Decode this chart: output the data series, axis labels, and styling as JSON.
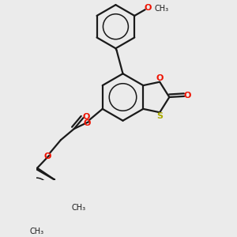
{
  "bg_color": "#ebebeb",
  "bond_color": "#1a1a1a",
  "oxygen_color": "#ee1100",
  "sulfur_color": "#aaaa00",
  "lw": 1.6,
  "fig_size": [
    3.0,
    3.0
  ],
  "dpi": 100,
  "methoxy_label": "O",
  "methoxy_ch3": "CH₃",
  "carbonyl_o": "O",
  "ring_o": "O",
  "ring_s": "S"
}
